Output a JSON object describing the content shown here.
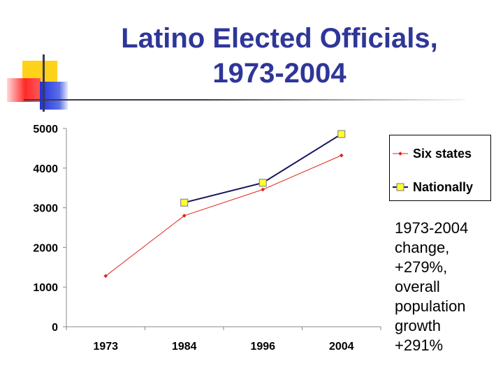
{
  "slide": {
    "title_line1": "Latino Elected Officials,",
    "title_line2": "1973-2004",
    "note_lines": [
      "1973-2004",
      "change,",
      "+279%,",
      "overall",
      "population",
      "growth",
      "+291%"
    ]
  },
  "colors": {
    "title": "#2f3699",
    "six_states": "#e0241c",
    "nationally_line": "#14145a",
    "nationally_marker": "#ffff33"
  },
  "chart_data": {
    "type": "line",
    "categories": [
      "1973",
      "1984",
      "1996",
      "2004"
    ],
    "series": [
      {
        "name": "Six states",
        "values": [
          1280,
          2800,
          3460,
          4320
        ]
      },
      {
        "name": "Nationally",
        "values": [
          null,
          3130,
          3630,
          4860
        ]
      }
    ],
    "y_ticks": [
      "0",
      "1000",
      "2000",
      "3000",
      "4000",
      "5000"
    ],
    "ylim": [
      0,
      5000
    ],
    "legend_position": "right",
    "grid": false
  }
}
